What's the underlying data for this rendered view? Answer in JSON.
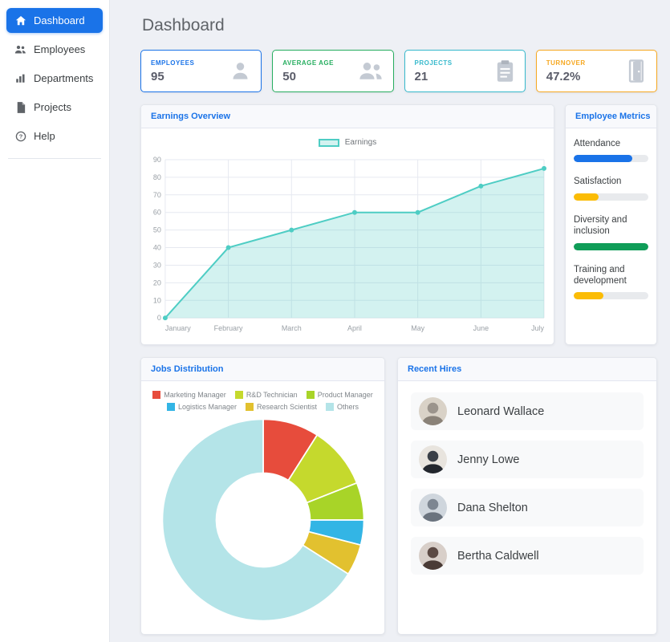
{
  "page": {
    "title": "Dashboard"
  },
  "sidebar": {
    "active_color": "#1a73e8",
    "items": [
      {
        "label": "Dashboard",
        "icon": "home-icon",
        "active": true
      },
      {
        "label": "Employees",
        "icon": "people-icon",
        "active": false
      },
      {
        "label": "Departments",
        "icon": "bar-chart-icon",
        "active": false
      },
      {
        "label": "Projects",
        "icon": "document-icon",
        "active": false
      },
      {
        "label": "Help",
        "icon": "help-icon",
        "active": false
      }
    ]
  },
  "stat_cards": [
    {
      "label": "EMPLOYEES",
      "value": "95",
      "color": "#1a73e8",
      "icon": "person-icon"
    },
    {
      "label": "AVERAGE AGE",
      "value": "50",
      "color": "#27ae60",
      "icon": "people-icon"
    },
    {
      "label": "PROJECTS",
      "value": "21",
      "color": "#36b9cc",
      "icon": "clipboard-icon"
    },
    {
      "label": "TURNOVER",
      "value": "47.2%",
      "color": "#f6a821",
      "icon": "door-icon"
    }
  ],
  "chart_data": [
    {
      "type": "area",
      "title": "Earnings Overview",
      "x": [
        "January",
        "February",
        "March",
        "April",
        "May",
        "June",
        "July"
      ],
      "series": [
        {
          "name": "Earnings",
          "values": [
            0,
            40,
            50,
            60,
            60,
            75,
            85
          ]
        }
      ],
      "ylim": [
        0,
        90
      ],
      "ytick_step": 10,
      "grid": true,
      "legend_position": "top",
      "line_color": "#4ecdc4",
      "fill_color": "rgba(78,205,196,0.25)"
    },
    {
      "type": "pie",
      "title": "Jobs Distribution",
      "donut": true,
      "legend_position": "top",
      "slices": [
        {
          "label": "Marketing Manager",
          "value": 9,
          "color": "#e74c3c"
        },
        {
          "label": "R&D Technician",
          "value": 10,
          "color": "#c5d92d"
        },
        {
          "label": "Product Manager",
          "value": 6,
          "color": "#a8d428"
        },
        {
          "label": "Logistics Manager",
          "value": 4,
          "color": "#33b5e5"
        },
        {
          "label": "Research Scientist",
          "value": 5,
          "color": "#e2c12f"
        },
        {
          "label": "Others",
          "value": 66,
          "color": "#b4e4e8"
        }
      ]
    }
  ],
  "employee_metrics": {
    "title": "Employee Metrics",
    "items": [
      {
        "label": "Attendance",
        "percent": 78,
        "color": "#1a73e8"
      },
      {
        "label": "Satisfaction",
        "percent": 33,
        "color": "#fbbc05"
      },
      {
        "label": "Diversity and inclusion",
        "percent": 100,
        "color": "#0f9d58"
      },
      {
        "label": "Training and development",
        "percent": 40,
        "color": "#fbbc05"
      }
    ]
  },
  "recent_hires": {
    "title": "Recent Hires",
    "items": [
      {
        "name": "Leonard Wallace"
      },
      {
        "name": "Jenny Lowe"
      },
      {
        "name": "Dana Shelton"
      },
      {
        "name": "Bertha Caldwell"
      }
    ]
  }
}
